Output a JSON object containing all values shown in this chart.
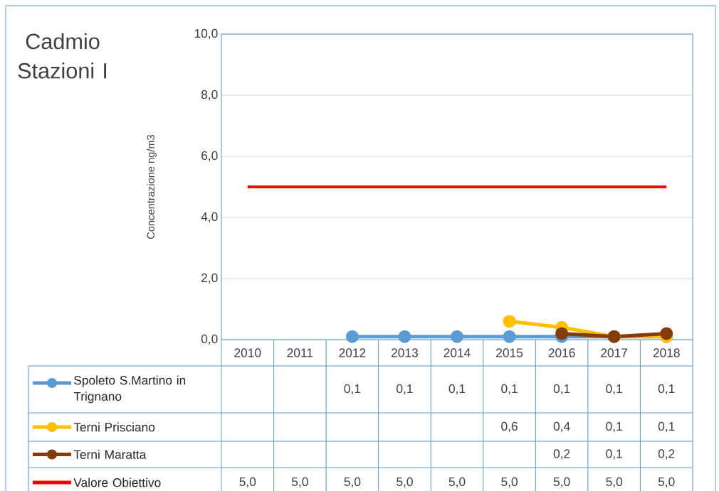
{
  "chart_data": {
    "type": "line",
    "title": "Cadmio Stazioni I",
    "ylabel": "Concentrazione  ng/m3",
    "categories": [
      "2010",
      "2011",
      "2012",
      "2013",
      "2014",
      "2015",
      "2016",
      "2017",
      "2018"
    ],
    "series": [
      {
        "name": "Spoleto S.Martino in Trignano",
        "color": "#5b9bd5",
        "marker": "circle",
        "values": [
          null,
          null,
          0.1,
          0.1,
          0.1,
          0.1,
          0.1,
          0.1,
          0.1
        ],
        "value_labels": [
          null,
          null,
          "0,1",
          "0,1",
          "0,1",
          "0,1",
          "0,1",
          "0,1",
          "0,1"
        ]
      },
      {
        "name": "Terni Prisciano",
        "color": "#ffc000",
        "marker": "circle",
        "values": [
          null,
          null,
          null,
          null,
          null,
          0.6,
          0.4,
          0.1,
          0.1
        ],
        "value_labels": [
          null,
          null,
          null,
          null,
          null,
          "0,6",
          "0,4",
          "0,1",
          "0,1"
        ]
      },
      {
        "name": "Terni Maratta",
        "color": "#843c0c",
        "marker": "circle",
        "values": [
          null,
          null,
          null,
          null,
          null,
          null,
          0.2,
          0.1,
          0.2
        ],
        "value_labels": [
          null,
          null,
          null,
          null,
          null,
          null,
          "0,2",
          "0,1",
          "0,2"
        ]
      },
      {
        "name": "Valore Obiettivo",
        "color": "#ff0000",
        "marker": "none",
        "values": [
          5.0,
          5.0,
          5.0,
          5.0,
          5.0,
          5.0,
          5.0,
          5.0,
          5.0
        ],
        "value_labels": [
          "5,0",
          "5,0",
          "5,0",
          "5,0",
          "5,0",
          "5,0",
          "5,0",
          "5,0",
          "5,0"
        ]
      }
    ],
    "ylim": [
      0,
      10
    ],
    "yticks": [
      {
        "value": 0,
        "label": "0,0"
      },
      {
        "value": 2,
        "label": "2,0"
      },
      {
        "value": 4,
        "label": "4,0"
      },
      {
        "value": 6,
        "label": "6,0"
      },
      {
        "value": 8,
        "label": "8,0"
      },
      {
        "value": 10,
        "label": "10,0"
      }
    ],
    "grid": "y",
    "legend": "bottom"
  }
}
